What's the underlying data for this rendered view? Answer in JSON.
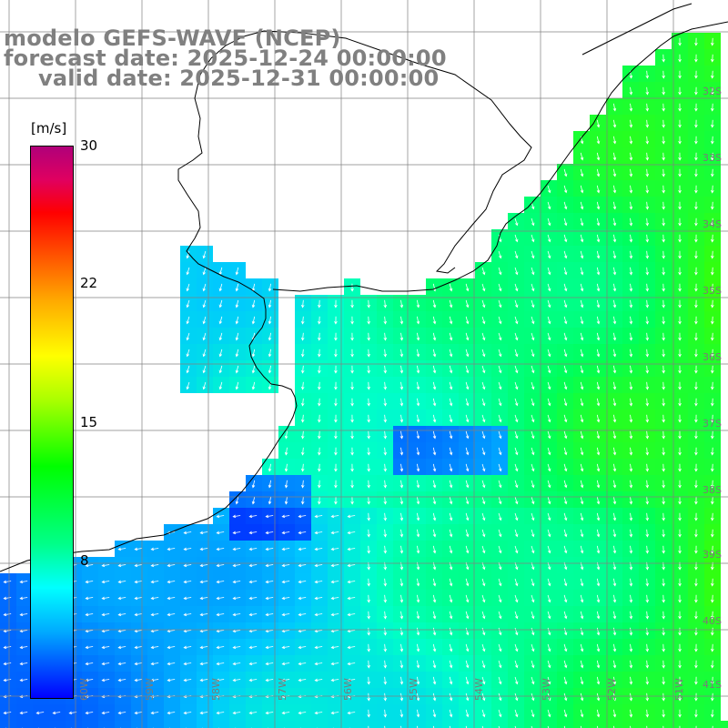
{
  "title": {
    "line1": "modelo GEFS-WAVE (NCEP)",
    "line2": "forecast date: 2025-12-24 00:00:00",
    "line3": "valid date: 2025-12-31 00:00:00"
  },
  "colorbar": {
    "units": "[m/s]",
    "ticks": [
      "30",
      "22",
      "15",
      "8"
    ],
    "range": [
      0,
      30
    ]
  },
  "grid": {
    "lat_labels": [
      "32S",
      "33S",
      "34S",
      "35S",
      "36S",
      "37S",
      "38S",
      "39S",
      "40S",
      "41S"
    ],
    "lon_labels": [
      "60W",
      "59W",
      "58W",
      "57W",
      "56W",
      "55W",
      "54W",
      "53W",
      "52W",
      "51W"
    ]
  },
  "colors": {
    "land": "#ffffff",
    "coastline": "#000000",
    "grid": "#808080",
    "vectors": "#ffffff",
    "title": "#808080"
  }
}
